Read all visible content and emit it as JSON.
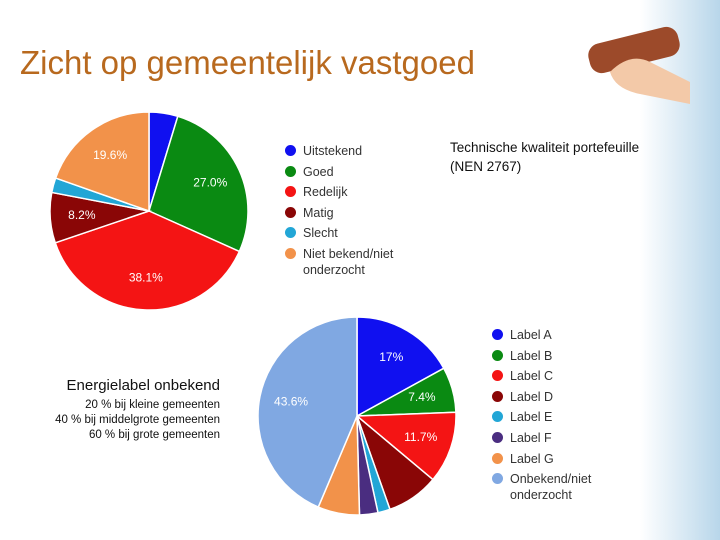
{
  "header": {
    "title": "Zicht op gemeentelijk vastgoed"
  },
  "notes": {
    "heading": "Energielabel onbekend",
    "lines": [
      "20 % bij kleine gemeenten",
      "40 % bij middelgrote gemeenten",
      "60 % bij grote gemeenten"
    ]
  },
  "chart_data": [
    {
      "type": "pie",
      "title": "Technische kwaliteit portefeuille (NEN 2767)",
      "categories": [
        "Uitstekend",
        "Goed",
        "Redelijk",
        "Matig",
        "Slecht",
        "Niet bekend/niet onderzocht"
      ],
      "values": [
        4.7,
        27.0,
        38.1,
        8.2,
        2.4,
        19.6
      ],
      "value_labels": [
        null,
        "27.0%",
        "38.1%",
        "8.2%",
        null,
        "19.6%"
      ],
      "colors": [
        "#1010f0",
        "#0a8a12",
        "#f41414",
        "#8a0606",
        "#22a6d6",
        "#f2924a"
      ]
    },
    {
      "type": "pie",
      "categories": [
        "Label A",
        "Label B",
        "Label C",
        "Label D",
        "Label E",
        "Label F",
        "Label G",
        "Onbekend/niet onderzocht"
      ],
      "values": [
        17,
        7.4,
        11.7,
        8.5,
        2.0,
        3.0,
        6.8,
        43.6
      ],
      "value_labels": [
        "17%",
        "7.4%",
        "11.7%",
        null,
        null,
        null,
        null,
        "43.6%"
      ],
      "colors": [
        "#1010f0",
        "#0a8a12",
        "#f41414",
        "#8a0606",
        "#22a6d6",
        "#4a2d80",
        "#f2924a",
        "#80a8e2"
      ]
    }
  ]
}
